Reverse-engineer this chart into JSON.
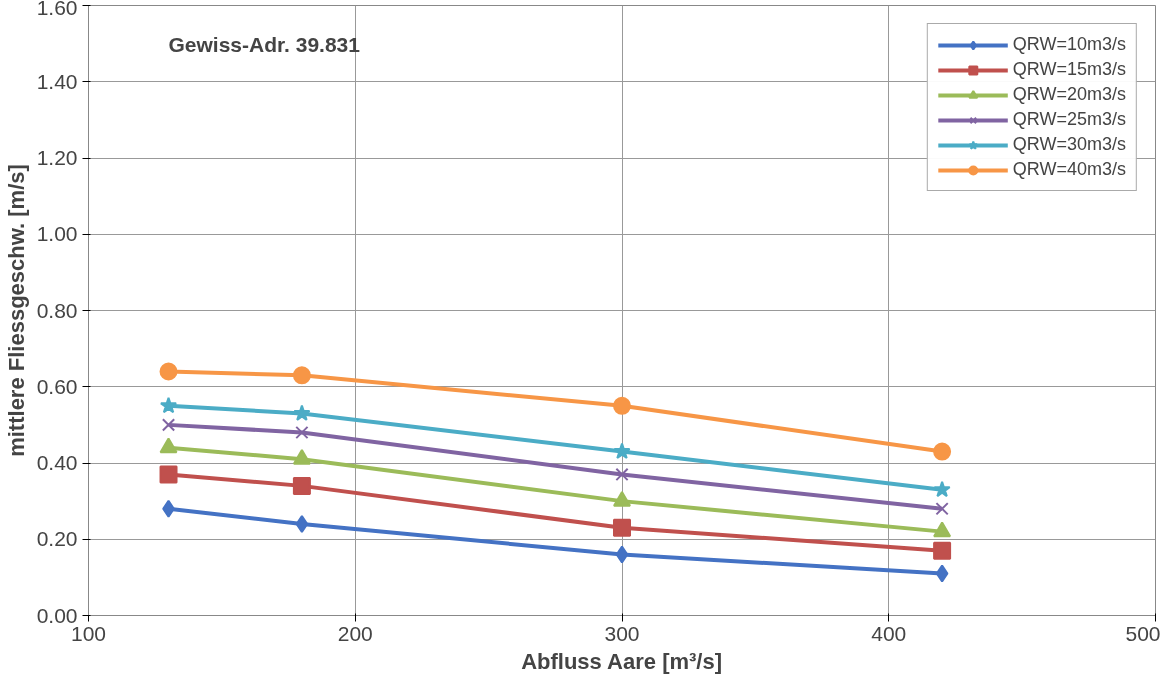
{
  "chart_data": {
    "type": "line",
    "annotations": [
      "Gewiss-Adr. 39.831"
    ],
    "xlabel": "Abfluss Aare [m³/s]",
    "ylabel": "mittlere Fliessgeschw. [m/s]",
    "x": [
      130,
      180,
      300,
      420
    ],
    "xlim": [
      100,
      500
    ],
    "xticks": [
      100,
      200,
      300,
      400,
      500
    ],
    "ylim": [
      0,
      1.6
    ],
    "yticks": [
      {
        "value": 0,
        "label": "0.00"
      },
      {
        "value": 0.2,
        "label": "0.20"
      },
      {
        "value": 0.4,
        "label": "0.40"
      },
      {
        "value": 0.6,
        "label": "0.60"
      },
      {
        "value": 0.8,
        "label": "0.80"
      },
      {
        "value": 1.0,
        "label": "1.00"
      },
      {
        "value": 1.2,
        "label": "1.20"
      },
      {
        "value": 1.4,
        "label": "1.40"
      },
      {
        "value": 1.6,
        "label": "1.60"
      }
    ],
    "grid": true,
    "legend": "top right",
    "line_style": "solid",
    "series": [
      {
        "name": "QRW=10m3/s",
        "color": "#4472c4",
        "marker": "diamond",
        "values": [
          0.28,
          0.24,
          0.16,
          0.11
        ]
      },
      {
        "name": "QRW=15m3/s",
        "color": "#c0504d",
        "marker": "square",
        "values": [
          0.37,
          0.34,
          0.23,
          0.17
        ]
      },
      {
        "name": "QRW=20m3/s",
        "color": "#9bbb59",
        "marker": "triangle",
        "values": [
          0.44,
          0.41,
          0.3,
          0.22
        ]
      },
      {
        "name": "QRW=25m3/s",
        "color": "#8064a2",
        "marker": "cross",
        "values": [
          0.5,
          0.48,
          0.37,
          0.28
        ]
      },
      {
        "name": "QRW=30m3/s",
        "color": "#4bacc6",
        "marker": "star",
        "values": [
          0.55,
          0.53,
          0.43,
          0.33
        ]
      },
      {
        "name": "QRW=40m3/s",
        "color": "#f79646",
        "marker": "circle",
        "values": [
          0.64,
          0.63,
          0.55,
          0.43
        ]
      }
    ]
  }
}
